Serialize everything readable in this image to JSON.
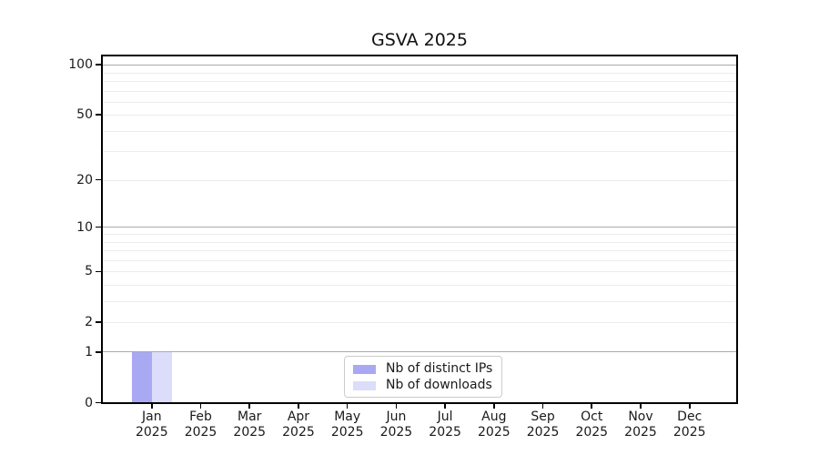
{
  "chart_data": {
    "type": "bar",
    "title": "GSVA 2025",
    "x_axis": {
      "categories": [
        "Jan",
        "Feb",
        "Mar",
        "Apr",
        "May",
        "Jun",
        "Jul",
        "Aug",
        "Sep",
        "Oct",
        "Nov",
        "Dec"
      ],
      "year_suffix": "2025"
    },
    "y_axis": {
      "scale": "log1p",
      "range": [
        0,
        100
      ],
      "tick_values": [
        0,
        1,
        2,
        5,
        10,
        20,
        50,
        100
      ],
      "major_grid_values": [
        1,
        10,
        100
      ],
      "minor_grid_values": [
        2,
        3,
        4,
        5,
        6,
        7,
        8,
        9,
        20,
        30,
        40,
        50,
        60,
        70,
        80,
        90
      ]
    },
    "series": [
      {
        "name": "Nb of distinct IPs",
        "color": "#a9a9f3",
        "values": [
          1,
          0,
          0,
          0,
          0,
          0,
          0,
          0,
          0,
          0,
          0,
          0
        ]
      },
      {
        "name": "Nb of downloads",
        "color": "#dcdcfb",
        "values": [
          1,
          0,
          0,
          0,
          0,
          0,
          0,
          0,
          0,
          0,
          0,
          0
        ]
      }
    ],
    "legend": {
      "position": "bottom-center"
    },
    "style": {
      "major_grid_color": "#aaaaaa",
      "minor_grid_color": "#ececec",
      "axis_color": "#000000",
      "text_color": "#1a1a1a",
      "background": "#ffffff"
    }
  }
}
